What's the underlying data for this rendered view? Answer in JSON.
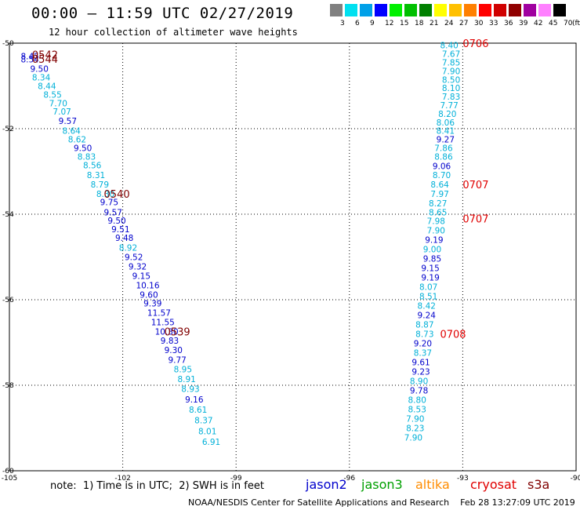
{
  "header": {
    "title": "00:00 – 11:59 UTC 02/27/2019",
    "subtitle": "12 hour collection of altimeter wave heights"
  },
  "color_scale": {
    "labels": [
      "3",
      "6",
      "9",
      "12",
      "15",
      "18",
      "21",
      "24",
      "27",
      "30",
      "33",
      "36",
      "39",
      "42",
      "45",
      "70"
    ],
    "unit": "(ft)",
    "colors": [
      "#808080",
      "#00e0f0",
      "#00a0e8",
      "#0000ff",
      "#00f000",
      "#00c000",
      "#008000",
      "#ffff00",
      "#ffc000",
      "#ff8000",
      "#ff0000",
      "#d00000",
      "#900000",
      "#a000a0",
      "#ff80ff",
      "#000000"
    ]
  },
  "footer": {
    "note": "note:  1) Time is in UTC;  2) SWH is in feet",
    "credit": "NOAA/NESDIS Center for Satellite Applications and Research    Feb 28 13:27:09 UTC 2019"
  },
  "legend": [
    {
      "name": "jason2",
      "color": "#0000cc"
    },
    {
      "name": "jason3",
      "color": "#00a000"
    },
    {
      "name": "altika",
      "color": "#ff8c00"
    },
    {
      "name": "cryosat",
      "color": "#e00000"
    },
    {
      "name": "s3a",
      "color": "#800000"
    }
  ],
  "chart_data": {
    "type": "scatter",
    "title": "00:00 – 11:59 UTC 02/27/2019",
    "subtitle": "12 hour collection of altimeter wave heights",
    "xlim": [
      -105,
      -90
    ],
    "ylim": [
      -60,
      -50
    ],
    "x_ticks": [
      "-105",
      "-102",
      "-99",
      "-96",
      "-93",
      "-90"
    ],
    "y_ticks": [
      "-50",
      "-52",
      "-54",
      "-56",
      "-58",
      "-60"
    ],
    "x_tick_values": [
      -105,
      -102,
      -99,
      -96,
      -93,
      -90
    ],
    "y_tick_values": [
      -50,
      -52,
      -54,
      -56,
      -58,
      -60
    ],
    "grid": true,
    "colors": {
      "cyan": "#00b0d8",
      "blue": "#0000cc",
      "s3a": "#800000",
      "cryosat": "#e00000"
    },
    "series": [
      {
        "name": "s3a",
        "points": [
          {
            "x": -104.7,
            "y": -50.3,
            "v": "8.45",
            "c": "blue"
          },
          {
            "x": -104.7,
            "y": -50.38,
            "v": "8.54",
            "c": "blue"
          },
          {
            "x": -104.45,
            "y": -50.6,
            "v": "9.50",
            "c": "blue"
          },
          {
            "x": -104.4,
            "y": -50.8,
            "v": "8.34",
            "c": "cyan"
          },
          {
            "x": -104.25,
            "y": -51.0,
            "v": "8.44",
            "c": "cyan"
          },
          {
            "x": -104.1,
            "y": -51.2,
            "v": "8.55",
            "c": "cyan"
          },
          {
            "x": -103.95,
            "y": -51.4,
            "v": "7.70",
            "c": "cyan"
          },
          {
            "x": -103.85,
            "y": -51.6,
            "v": "7.07",
            "c": "cyan"
          },
          {
            "x": -103.7,
            "y": -51.82,
            "v": "9.57",
            "c": "blue"
          },
          {
            "x": -103.6,
            "y": -52.05,
            "v": "8.64",
            "c": "cyan"
          },
          {
            "x": -103.45,
            "y": -52.25,
            "v": "8.62",
            "c": "cyan"
          },
          {
            "x": -103.3,
            "y": -52.45,
            "v": "9.50",
            "c": "blue"
          },
          {
            "x": -103.2,
            "y": -52.65,
            "v": "8.83",
            "c": "cyan"
          },
          {
            "x": -103.05,
            "y": -52.85,
            "v": "8.56",
            "c": "cyan"
          },
          {
            "x": -102.95,
            "y": -53.08,
            "v": "8.31",
            "c": "cyan"
          },
          {
            "x": -102.85,
            "y": -53.3,
            "v": "8.79",
            "c": "cyan"
          },
          {
            "x": -102.7,
            "y": -53.52,
            "v": "8.30",
            "c": "cyan"
          },
          {
            "x": -102.6,
            "y": -53.72,
            "v": "9.75",
            "c": "blue"
          },
          {
            "x": -102.5,
            "y": -53.95,
            "v": "9.57",
            "c": "blue"
          },
          {
            "x": -102.4,
            "y": -54.15,
            "v": "9.50",
            "c": "blue"
          },
          {
            "x": -102.3,
            "y": -54.35,
            "v": "9.51",
            "c": "blue"
          },
          {
            "x": -102.2,
            "y": -54.55,
            "v": "9.48",
            "c": "blue"
          },
          {
            "x": -102.1,
            "y": -54.78,
            "v": "8.92",
            "c": "cyan"
          },
          {
            "x": -101.95,
            "y": -55.0,
            "v": "9.52",
            "c": "blue"
          },
          {
            "x": -101.85,
            "y": -55.22,
            "v": "9.32",
            "c": "blue"
          },
          {
            "x": -101.75,
            "y": -55.44,
            "v": "9.15",
            "c": "blue"
          },
          {
            "x": -101.65,
            "y": -55.66,
            "v": "10.16",
            "c": "blue"
          },
          {
            "x": -101.55,
            "y": -55.88,
            "v": "9.60",
            "c": "blue"
          },
          {
            "x": -101.45,
            "y": -56.08,
            "v": "9.39",
            "c": "blue"
          },
          {
            "x": -101.35,
            "y": -56.3,
            "v": "11.57",
            "c": "blue"
          },
          {
            "x": -101.25,
            "y": -56.52,
            "v": "11.55",
            "c": "blue"
          },
          {
            "x": -101.15,
            "y": -56.74,
            "v": "10.30",
            "c": "blue"
          },
          {
            "x": -101.0,
            "y": -56.95,
            "v": "9.83",
            "c": "blue"
          },
          {
            "x": -100.9,
            "y": -57.17,
            "v": "9.30",
            "c": "blue"
          },
          {
            "x": -100.8,
            "y": -57.4,
            "v": "9.77",
            "c": "blue"
          },
          {
            "x": -100.65,
            "y": -57.62,
            "v": "8.95",
            "c": "cyan"
          },
          {
            "x": -100.55,
            "y": -57.85,
            "v": "8.91",
            "c": "cyan"
          },
          {
            "x": -100.45,
            "y": -58.08,
            "v": "8.93",
            "c": "cyan"
          },
          {
            "x": -100.35,
            "y": -58.33,
            "v": "9.16",
            "c": "blue"
          },
          {
            "x": -100.25,
            "y": -58.57,
            "v": "8.61",
            "c": "cyan"
          },
          {
            "x": -100.1,
            "y": -58.82,
            "v": "8.37",
            "c": "cyan"
          },
          {
            "x": -100.0,
            "y": -59.07,
            "v": "8.01",
            "c": "cyan"
          },
          {
            "x": -99.9,
            "y": -59.32,
            "v": "6.91",
            "c": "cyan"
          }
        ],
        "time_labels": [
          {
            "x": -104.4,
            "y": -50.27,
            "label": "0542"
          },
          {
            "x": -104.4,
            "y": -50.37,
            "label": "0544"
          },
          {
            "x": -102.5,
            "y": -53.52,
            "label": "0540"
          },
          {
            "x": -100.9,
            "y": -56.74,
            "label": "0539"
          }
        ]
      },
      {
        "name": "cryosat",
        "points": [
          {
            "x": -93.6,
            "y": -50.05,
            "v": "8.40",
            "c": "cyan"
          },
          {
            "x": -93.55,
            "y": -50.25,
            "v": "7.67",
            "c": "cyan"
          },
          {
            "x": -93.55,
            "y": -50.45,
            "v": "7.85",
            "c": "cyan"
          },
          {
            "x": -93.55,
            "y": -50.65,
            "v": "7.90",
            "c": "cyan"
          },
          {
            "x": -93.55,
            "y": -50.85,
            "v": "8.50",
            "c": "cyan"
          },
          {
            "x": -93.55,
            "y": -51.05,
            "v": "8.10",
            "c": "cyan"
          },
          {
            "x": -93.55,
            "y": -51.25,
            "v": "7.83",
            "c": "cyan"
          },
          {
            "x": -93.6,
            "y": -51.45,
            "v": "7.77",
            "c": "cyan"
          },
          {
            "x": -93.65,
            "y": -51.65,
            "v": "8.20",
            "c": "cyan"
          },
          {
            "x": -93.7,
            "y": -51.85,
            "v": "8.06",
            "c": "cyan"
          },
          {
            "x": -93.7,
            "y": -52.05,
            "v": "8.41",
            "c": "cyan"
          },
          {
            "x": -93.7,
            "y": -52.25,
            "v": "9.27",
            "c": "blue"
          },
          {
            "x": -93.75,
            "y": -52.45,
            "v": "7.86",
            "c": "cyan"
          },
          {
            "x": -93.75,
            "y": -52.65,
            "v": "8.86",
            "c": "cyan"
          },
          {
            "x": -93.8,
            "y": -52.87,
            "v": "9.06",
            "c": "blue"
          },
          {
            "x": -93.8,
            "y": -53.08,
            "v": "8.70",
            "c": "cyan"
          },
          {
            "x": -93.85,
            "y": -53.3,
            "v": "8.64",
            "c": "cyan"
          },
          {
            "x": -93.85,
            "y": -53.52,
            "v": "7.97",
            "c": "cyan"
          },
          {
            "x": -93.9,
            "y": -53.74,
            "v": "8.27",
            "c": "cyan"
          },
          {
            "x": -93.9,
            "y": -53.95,
            "v": "8.65",
            "c": "cyan"
          },
          {
            "x": -93.95,
            "y": -54.16,
            "v": "7.98",
            "c": "cyan"
          },
          {
            "x": -93.95,
            "y": -54.38,
            "v": "7.90",
            "c": "cyan"
          },
          {
            "x": -94.0,
            "y": -54.6,
            "v": "9.19",
            "c": "blue"
          },
          {
            "x": -94.05,
            "y": -54.82,
            "v": "9.00",
            "c": "cyan"
          },
          {
            "x": -94.05,
            "y": -55.04,
            "v": "9.85",
            "c": "blue"
          },
          {
            "x": -94.1,
            "y": -55.26,
            "v": "9.15",
            "c": "blue"
          },
          {
            "x": -94.1,
            "y": -55.48,
            "v": "9.19",
            "c": "blue"
          },
          {
            "x": -94.15,
            "y": -55.7,
            "v": "8.07",
            "c": "cyan"
          },
          {
            "x": -94.15,
            "y": -55.92,
            "v": "8.51",
            "c": "cyan"
          },
          {
            "x": -94.2,
            "y": -56.14,
            "v": "8.42",
            "c": "cyan"
          },
          {
            "x": -94.2,
            "y": -56.36,
            "v": "9.24",
            "c": "blue"
          },
          {
            "x": -94.25,
            "y": -56.58,
            "v": "8.87",
            "c": "cyan"
          },
          {
            "x": -94.25,
            "y": -56.8,
            "v": "8.73",
            "c": "cyan"
          },
          {
            "x": -94.3,
            "y": -57.02,
            "v": "9.20",
            "c": "blue"
          },
          {
            "x": -94.3,
            "y": -57.24,
            "v": "8.37",
            "c": "cyan"
          },
          {
            "x": -94.35,
            "y": -57.46,
            "v": "9.61",
            "c": "blue"
          },
          {
            "x": -94.35,
            "y": -57.68,
            "v": "9.23",
            "c": "blue"
          },
          {
            "x": -94.4,
            "y": -57.9,
            "v": "8.90",
            "c": "cyan"
          },
          {
            "x": -94.4,
            "y": -58.12,
            "v": "9.78",
            "c": "blue"
          },
          {
            "x": -94.45,
            "y": -58.34,
            "v": "8.80",
            "c": "cyan"
          },
          {
            "x": -94.45,
            "y": -58.56,
            "v": "8.53",
            "c": "cyan"
          },
          {
            "x": -94.5,
            "y": -58.78,
            "v": "7.90",
            "c": "cyan"
          },
          {
            "x": -94.5,
            "y": -59.0,
            "v": "8.23",
            "c": "cyan"
          },
          {
            "x": -94.55,
            "y": -59.22,
            "v": "7.90",
            "c": "cyan"
          }
        ],
        "time_labels": [
          {
            "x": -93.0,
            "y": -50.0,
            "label": "0706"
          },
          {
            "x": -93.0,
            "y": -53.3,
            "label": "0707"
          },
          {
            "x": -93.0,
            "y": -54.1,
            "label": "0707"
          },
          {
            "x": -93.6,
            "y": -56.8,
            "label": "0708"
          }
        ]
      }
    ]
  }
}
